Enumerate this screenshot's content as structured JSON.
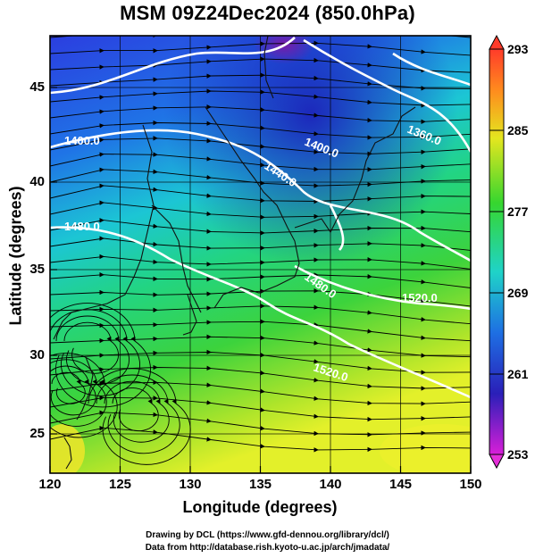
{
  "title": "MSM 09Z24Dec2024 (850.0hPa)",
  "xaxis": {
    "label": "Longitude (degrees)",
    "ticks": [
      "120",
      "125",
      "130",
      "135",
      "140",
      "145",
      "150"
    ]
  },
  "yaxis": {
    "label": "Latitude  (degrees)",
    "ticks": [
      "45",
      "40",
      "35",
      "30",
      "25"
    ]
  },
  "colorbar": {
    "ticks": [
      "293",
      "285",
      "277",
      "269",
      "261",
      "253"
    ],
    "min": 253,
    "max": 293
  },
  "contour_labels": [
    "1360.0",
    "1400.0",
    "1440.0",
    "1400.0",
    "1480.0",
    "1480.0",
    "1520.0",
    "1520.0"
  ],
  "credits": [
    "Drawing by DCL (https://www.gfd-dennou.org/library/dcl/)",
    "Data from http://database.rish.kyoto-u.ac.jp/arch/jmadata/"
  ],
  "colors": {
    "frame": "#000000",
    "contour": "#ffffff",
    "coast": "#111111",
    "cold": "#2a2fd0",
    "mid": "#21c9cf",
    "warm": "#d8ef22"
  }
}
